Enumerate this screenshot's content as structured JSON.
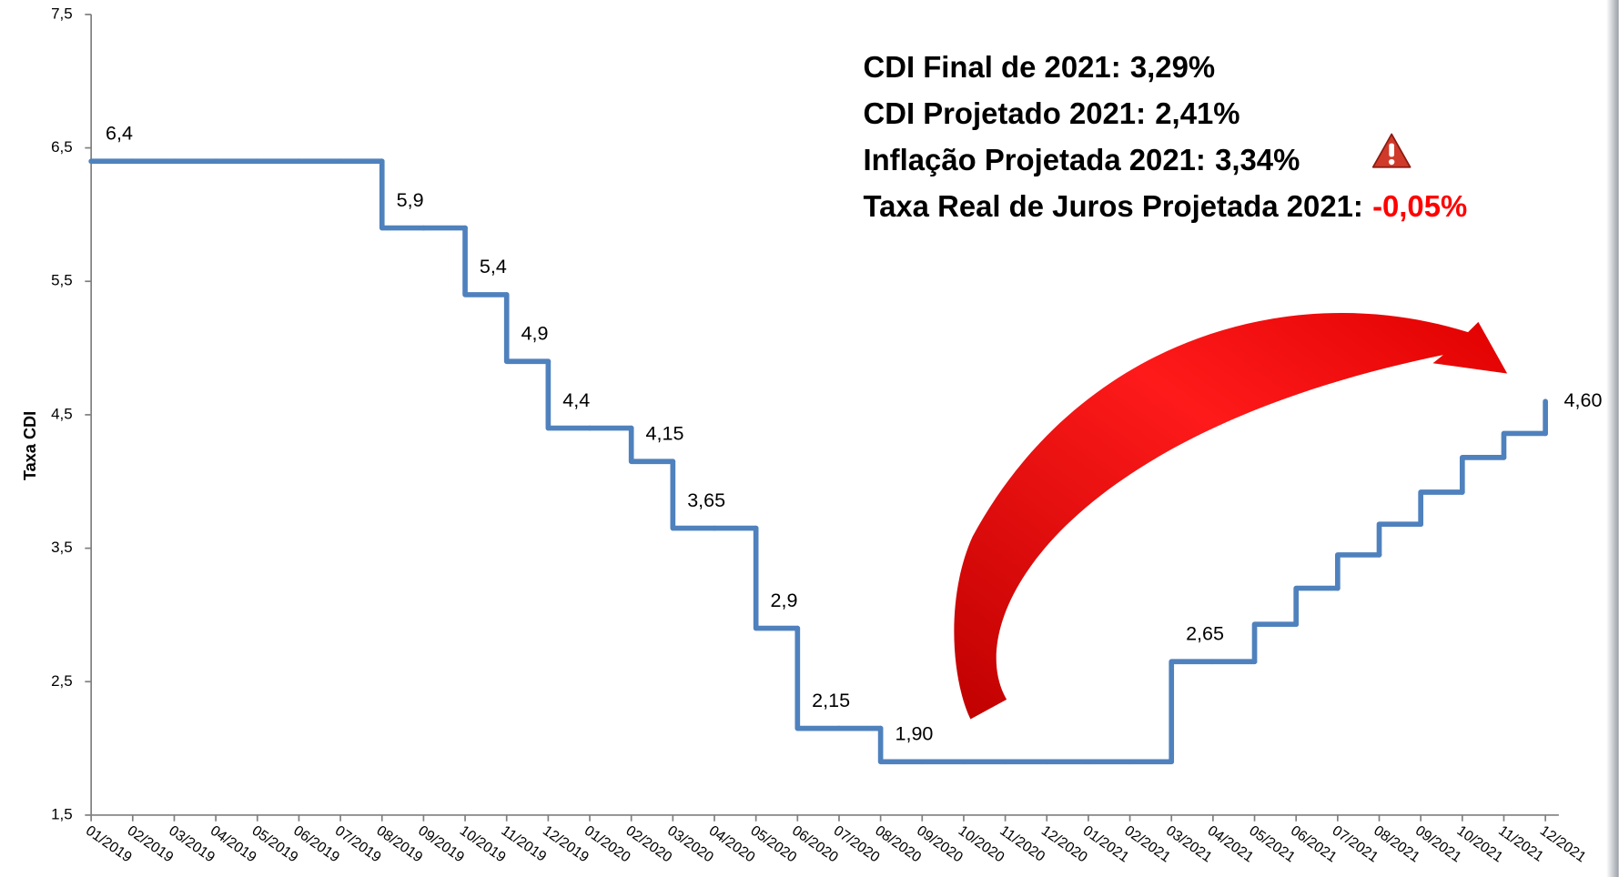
{
  "chart_data": {
    "type": "line",
    "step": "post",
    "y_label": "Taxa CDI",
    "color": "#4f81bd",
    "categories": [
      "01/2019",
      "02/2019",
      "03/2019",
      "04/2019",
      "05/2019",
      "06/2019",
      "07/2019",
      "08/2019",
      "09/2019",
      "10/2019",
      "11/2019",
      "12/2019",
      "01/2020",
      "02/2020",
      "03/2020",
      "04/2020",
      "05/2020",
      "06/2020",
      "07/2020",
      "08/2020",
      "09/2020",
      "10/2020",
      "11/2020",
      "12/2020",
      "01/2021",
      "02/2021",
      "03/2021",
      "04/2021",
      "05/2021",
      "06/2021",
      "07/2021",
      "08/2021",
      "09/2021",
      "10/2021",
      "11/2021",
      "12/2021"
    ],
    "values": [
      6.4,
      6.4,
      6.4,
      6.4,
      6.4,
      6.4,
      6.4,
      5.9,
      5.9,
      5.4,
      4.9,
      4.4,
      4.4,
      4.15,
      3.65,
      3.65,
      2.9,
      2.15,
      2.15,
      1.9,
      1.9,
      1.9,
      1.9,
      1.9,
      1.9,
      1.9,
      2.65,
      2.65,
      2.93,
      3.2,
      3.45,
      3.68,
      3.92,
      4.18,
      4.36,
      4.6
    ],
    "value_labels": [
      "6,4",
      null,
      null,
      null,
      null,
      null,
      null,
      "5,9",
      null,
      "5,4",
      "4,9",
      "4,4",
      null,
      "4,15",
      "3,65",
      null,
      "2,9",
      "2,15",
      null,
      "1,90",
      null,
      null,
      null,
      null,
      null,
      null,
      "2,65",
      null,
      null,
      null,
      null,
      null,
      null,
      null,
      null,
      "4,60"
    ],
    "ylim": [
      1.5,
      7.5
    ],
    "yticks": [
      {
        "value": 1.5,
        "label": "1,5"
      },
      {
        "value": 2.5,
        "label": "2,5"
      },
      {
        "value": 3.5,
        "label": "3,5"
      },
      {
        "value": 4.5,
        "label": "4,5"
      },
      {
        "value": 5.5,
        "label": "5,5"
      },
      {
        "value": 6.5,
        "label": "6,5"
      },
      {
        "value": 7.5,
        "label": "7,5"
      }
    ],
    "annotations": [
      {
        "label": "CDI Final de 2021:",
        "value": "3,29%"
      },
      {
        "label": "CDI Projetado 2021:",
        "value": "2,41%"
      },
      {
        "label": "Inflação Projetada 2021:",
        "value": "3,34%"
      },
      {
        "label": "Taxa Real de Juros Projetada 2021:",
        "value": "-0,05%",
        "color": "#ff0000"
      }
    ]
  }
}
